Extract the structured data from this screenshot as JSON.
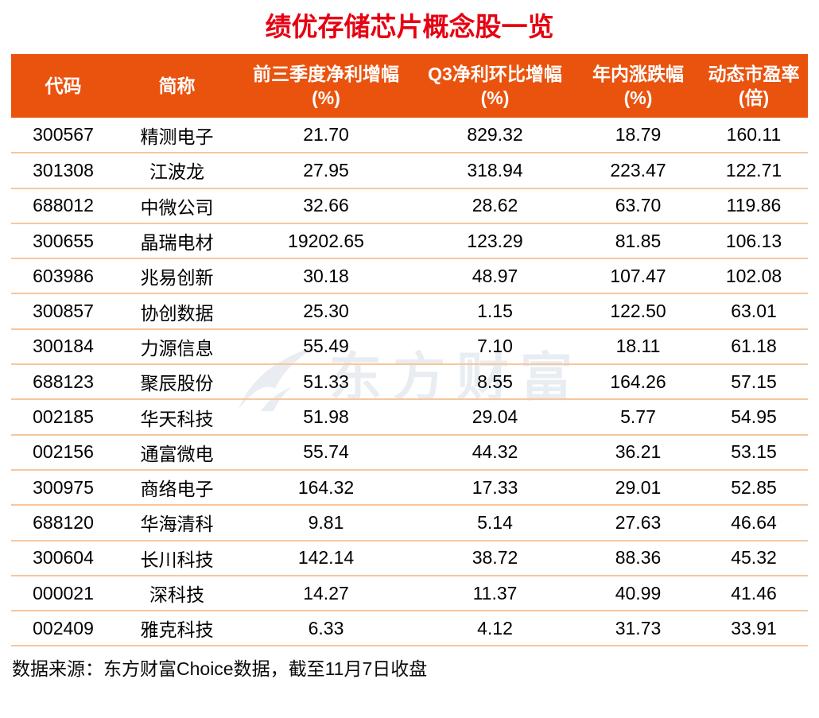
{
  "title": "绩优存储芯片概念股一览",
  "colors": {
    "title_red": "#e60012",
    "header_bg": "#ea530e",
    "header_text": "#ffffff",
    "row_divider": "#f6c79e",
    "body_text": "#000000",
    "watermark": "#e9edf2"
  },
  "watermark": {
    "icon": "eastmoney-wing-icon",
    "text": "东方财富"
  },
  "table": {
    "columns": [
      {
        "line1": "代码",
        "line2": ""
      },
      {
        "line1": "简称",
        "line2": ""
      },
      {
        "line1": "前三季度净利增幅",
        "line2": "(%)"
      },
      {
        "line1": "Q3净利环比增幅",
        "line2": "(%)"
      },
      {
        "line1": "年内涨跌幅",
        "line2": "(%)"
      },
      {
        "line1": "动态市盈率",
        "line2": "(倍)"
      }
    ],
    "rows": [
      [
        "300567",
        "精测电子",
        "21.70",
        "829.32",
        "18.79",
        "160.11"
      ],
      [
        "301308",
        "江波龙",
        "27.95",
        "318.94",
        "223.47",
        "122.71"
      ],
      [
        "688012",
        "中微公司",
        "32.66",
        "28.62",
        "63.70",
        "119.86"
      ],
      [
        "300655",
        "晶瑞电材",
        "19202.65",
        "123.29",
        "81.85",
        "106.13"
      ],
      [
        "603986",
        "兆易创新",
        "30.18",
        "48.97",
        "107.47",
        "102.08"
      ],
      [
        "300857",
        "协创数据",
        "25.30",
        "1.15",
        "122.50",
        "63.01"
      ],
      [
        "300184",
        "力源信息",
        "55.49",
        "7.10",
        "18.11",
        "61.18"
      ],
      [
        "688123",
        "聚辰股份",
        "51.33",
        "8.55",
        "164.26",
        "57.15"
      ],
      [
        "002185",
        "华天科技",
        "51.98",
        "29.04",
        "5.77",
        "54.95"
      ],
      [
        "002156",
        "通富微电",
        "55.74",
        "44.32",
        "36.21",
        "53.15"
      ],
      [
        "300975",
        "商络电子",
        "164.32",
        "17.33",
        "29.01",
        "52.85"
      ],
      [
        "688120",
        "华海清科",
        "9.81",
        "5.14",
        "27.63",
        "46.64"
      ],
      [
        "300604",
        "长川科技",
        "142.14",
        "38.72",
        "88.36",
        "45.32"
      ],
      [
        "000021",
        "深科技",
        "14.27",
        "11.37",
        "40.99",
        "41.46"
      ],
      [
        "002409",
        "雅克科技",
        "6.33",
        "4.12",
        "31.73",
        "33.91"
      ]
    ]
  },
  "footer": {
    "source_note": "数据来源：东方财富Choice数据，截至11月7日收盘"
  },
  "chart_data": {
    "type": "table",
    "title": "绩优存储芯片概念股一览",
    "columns": [
      "代码",
      "简称",
      "前三季度净利增幅(%)",
      "Q3净利环比增幅(%)",
      "年内涨跌幅(%)",
      "动态市盈率(倍)"
    ],
    "rows": [
      [
        "300567",
        "精测电子",
        21.7,
        829.32,
        18.79,
        160.11
      ],
      [
        "301308",
        "江波龙",
        27.95,
        318.94,
        223.47,
        122.71
      ],
      [
        "688012",
        "中微公司",
        32.66,
        28.62,
        63.7,
        119.86
      ],
      [
        "300655",
        "晶瑞电材",
        19202.65,
        123.29,
        81.85,
        106.13
      ],
      [
        "603986",
        "兆易创新",
        30.18,
        48.97,
        107.47,
        102.08
      ],
      [
        "300857",
        "协创数据",
        25.3,
        1.15,
        122.5,
        63.01
      ],
      [
        "300184",
        "力源信息",
        55.49,
        7.1,
        18.11,
        61.18
      ],
      [
        "688123",
        "聚辰股份",
        51.33,
        8.55,
        164.26,
        57.15
      ],
      [
        "002185",
        "华天科技",
        51.98,
        29.04,
        5.77,
        54.95
      ],
      [
        "002156",
        "通富微电",
        55.74,
        44.32,
        36.21,
        53.15
      ],
      [
        "300975",
        "商络电子",
        164.32,
        17.33,
        29.01,
        52.85
      ],
      [
        "688120",
        "华海清科",
        9.81,
        5.14,
        27.63,
        46.64
      ],
      [
        "300604",
        "长川科技",
        142.14,
        38.72,
        88.36,
        45.32
      ],
      [
        "000021",
        "深科技",
        14.27,
        11.37,
        40.99,
        41.46
      ],
      [
        "002409",
        "雅克科技",
        6.33,
        4.12,
        31.73,
        33.91
      ]
    ],
    "source": "数据来源：东方财富Choice数据，截至11月7日收盘"
  }
}
